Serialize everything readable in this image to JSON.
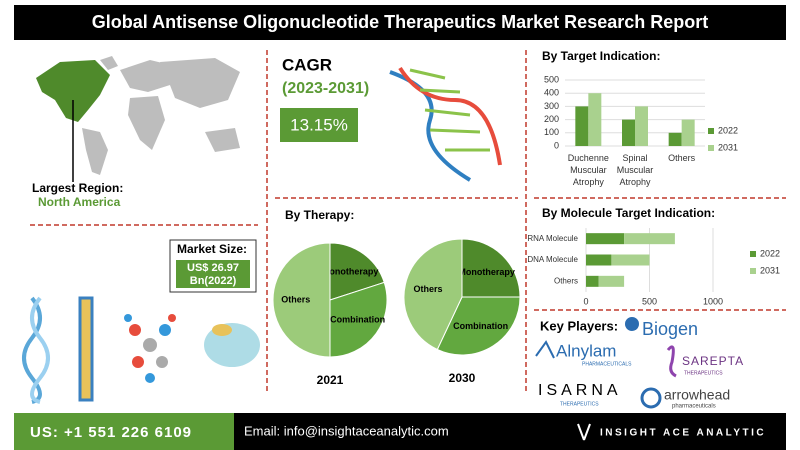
{
  "header": {
    "title": "Global Antisense Oligonucleotide Therapeutics Market Research Report"
  },
  "region": {
    "label": "Largest Region:",
    "value": "North America"
  },
  "cagr": {
    "label": "CAGR",
    "period": "(2023-2031)",
    "value": "13.15%"
  },
  "market_size": {
    "label": "Market Size:",
    "value": "US$ 26.97",
    "year": "Bn(2022)"
  },
  "therapy": {
    "title": "By Therapy:"
  },
  "chart_data": [
    {
      "type": "bar",
      "title": "By Target Indication:",
      "categories": [
        "Duchenne Muscular Atrophy",
        "Spinal Muscular Atrophy",
        "Others"
      ],
      "series": [
        {
          "name": "2022",
          "color": "#5b9a35",
          "values": [
            300,
            200,
            100
          ]
        },
        {
          "name": "2031",
          "color": "#a9d18e",
          "values": [
            400,
            300,
            200
          ]
        }
      ],
      "ylim": [
        0,
        500
      ],
      "yticks": [
        0,
        100,
        200,
        300,
        400,
        500
      ],
      "grid": true
    },
    {
      "type": "hbar",
      "title": "By Molecule Target Indication:",
      "stacked": true,
      "categories": [
        "RNA Molecule",
        "DNA Molecule",
        "Others"
      ],
      "series": [
        {
          "name": "2022",
          "color": "#5b9a35",
          "values": [
            300,
            200,
            100
          ]
        },
        {
          "name": "2031",
          "color": "#a9d18e",
          "values": [
            400,
            300,
            200
          ]
        }
      ],
      "xlim": [
        0,
        1000
      ],
      "xticks": [
        0,
        500,
        1000
      ],
      "grid": true
    },
    {
      "type": "pie",
      "title": "2021",
      "categories": [
        "Monotherapy",
        "Combination",
        "Others"
      ],
      "values": [
        20,
        30,
        50
      ],
      "colors": [
        "#4f8a2b",
        "#62a83f",
        "#9ccb7a"
      ]
    },
    {
      "type": "pie",
      "title": "2030",
      "categories": [
        "Monotherapy",
        "Combination",
        "Others"
      ],
      "values": [
        25,
        32,
        43
      ],
      "colors": [
        "#4f8a2b",
        "#62a83f",
        "#9ccb7a"
      ]
    }
  ],
  "key_players": {
    "title": "Key Players:",
    "companies": [
      {
        "name": "Biogen"
      },
      {
        "name": "Alnylam",
        "tagline": "PHARMACEUTICALS"
      },
      {
        "name": "SAREPTA",
        "tagline": "THERAPEUTICS"
      },
      {
        "name": "ISARNA",
        "tagline": "THERAPEUTICS"
      },
      {
        "name": "arrowhead",
        "tagline": "pharmaceuticals"
      }
    ]
  },
  "footer": {
    "phone": "US: +1 551 226 6109",
    "email": "Email: info@insightaceanalytic.com",
    "brand": "INSIGHT ACE ANALYTIC"
  }
}
